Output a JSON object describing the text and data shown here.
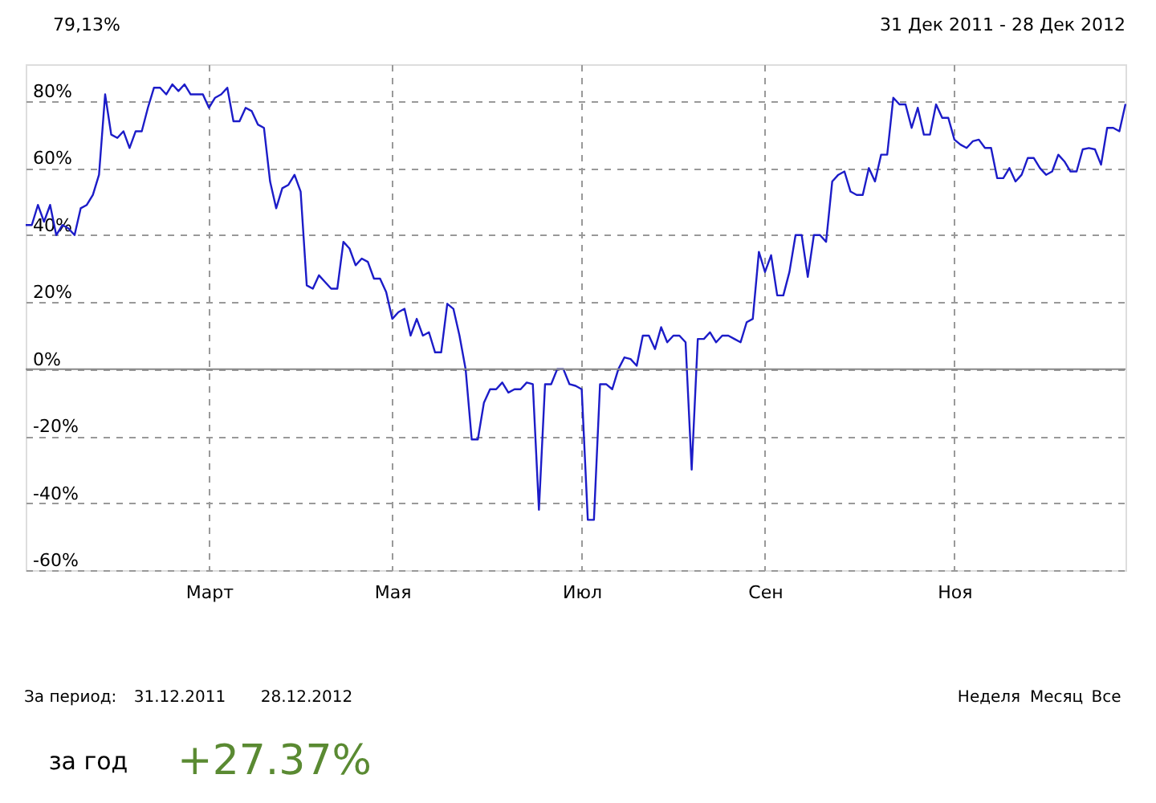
{
  "chart_data": {
    "type": "line",
    "categories": [
      null,
      null,
      null,
      null,
      null,
      null,
      null,
      null,
      null,
      null,
      null,
      null,
      null,
      null,
      null,
      null,
      null,
      null,
      null,
      null,
      null,
      null,
      null,
      null,
      null,
      null,
      null,
      null,
      null,
      null,
      "Март",
      null,
      null,
      null,
      null,
      null,
      null,
      null,
      null,
      null,
      null,
      null,
      null,
      null,
      null,
      null,
      null,
      null,
      null,
      null,
      null,
      null,
      null,
      null,
      null,
      null,
      null,
      null,
      null,
      null,
      "Мая",
      null,
      null,
      null,
      null,
      null,
      null,
      null,
      null,
      null,
      null,
      null,
      null,
      null,
      null,
      null,
      null,
      null,
      null,
      null,
      null,
      null,
      null,
      null,
      null,
      null,
      null,
      null,
      null,
      null,
      null,
      "Июл",
      null,
      null,
      null,
      null,
      null,
      null,
      null,
      null,
      null,
      null,
      null,
      null,
      null,
      null,
      null,
      null,
      null,
      null,
      null,
      null,
      null,
      null,
      null,
      null,
      null,
      null,
      null,
      null,
      null,
      "Сен",
      null,
      null,
      null,
      null,
      null,
      null,
      null,
      null,
      null,
      null,
      null,
      null,
      null,
      null,
      null,
      null,
      null,
      null,
      null,
      null,
      null,
      null,
      null,
      null,
      null,
      null,
      null,
      null,
      null,
      null,
      "Ноя",
      null,
      null,
      null,
      null,
      null,
      null,
      null,
      null,
      null,
      null,
      null,
      null,
      null,
      null,
      null,
      null,
      null,
      null,
      null,
      null,
      null,
      null,
      null,
      null,
      null,
      null,
      null,
      null
    ],
    "series": [
      {
        "color": "#1c1cc8",
        "values": [
          43,
          43,
          49,
          44,
          49,
          40,
          43,
          42,
          40,
          48,
          49,
          52,
          58,
          82,
          70,
          69,
          71,
          66,
          71,
          71,
          78,
          84,
          84,
          82,
          85,
          83,
          85,
          82,
          82,
          82,
          78,
          81,
          82,
          84,
          74,
          74,
          78,
          77,
          73,
          72,
          56,
          48,
          54,
          55,
          58,
          53,
          25,
          24,
          28,
          26,
          24,
          24,
          38,
          36,
          31,
          33,
          32,
          27,
          27,
          23,
          15,
          17,
          18,
          10,
          15,
          10,
          11,
          5,
          5,
          19.5,
          18,
          10,
          0,
          -21,
          -21,
          -10,
          -6,
          -6,
          -4,
          -7,
          -6,
          -6,
          -4,
          -4.5,
          -42,
          -4.5,
          -4.5,
          0,
          0,
          -4.5,
          -5,
          -6,
          -45,
          -45,
          -4.5,
          -4.5,
          -6,
          0,
          3.5,
          3,
          1,
          10,
          10,
          6,
          12.5,
          8,
          10,
          10,
          8,
          -30,
          9,
          9,
          11,
          8,
          10,
          10,
          9,
          8,
          14,
          15,
          35,
          29,
          34,
          22,
          22,
          29,
          40,
          40,
          27.5,
          40,
          40,
          38,
          56,
          58,
          59,
          53,
          52,
          52,
          60,
          56,
          64,
          64,
          81,
          79,
          79,
          72,
          78,
          70,
          70,
          79,
          75,
          75,
          68.5,
          67,
          66,
          68,
          68.5,
          66,
          66,
          57,
          57,
          60,
          56,
          58,
          63,
          63,
          60,
          58,
          59,
          64,
          62,
          59,
          59,
          65.6,
          66,
          65.6,
          61,
          72,
          72,
          71,
          79.13
        ]
      }
    ],
    "ylim": [
      -60,
      91
    ],
    "yticks": [
      {
        "value": -60,
        "label": "-60%"
      },
      {
        "value": -40,
        "label": "-40%"
      },
      {
        "value": -20,
        "label": "-20%"
      },
      {
        "value": 0,
        "label": "0%"
      },
      {
        "value": 20,
        "label": "20%"
      },
      {
        "value": 40,
        "label": "40%"
      },
      {
        "value": 60,
        "label": "60%"
      },
      {
        "value": 80,
        "label": "80%"
      }
    ],
    "grid": true,
    "ref_lines": [
      {
        "axis": "y",
        "value": 0,
        "color": "#888888",
        "line_style": "solid"
      }
    ],
    "annotations": [
      "79,13%",
      "31 Дек 2011 - 28 Дек 2012",
      "За период:",
      "31.12.2011",
      "28.12.2012",
      "Неделя",
      "Месяц",
      "Все",
      "за год",
      "+27.37%"
    ]
  }
}
